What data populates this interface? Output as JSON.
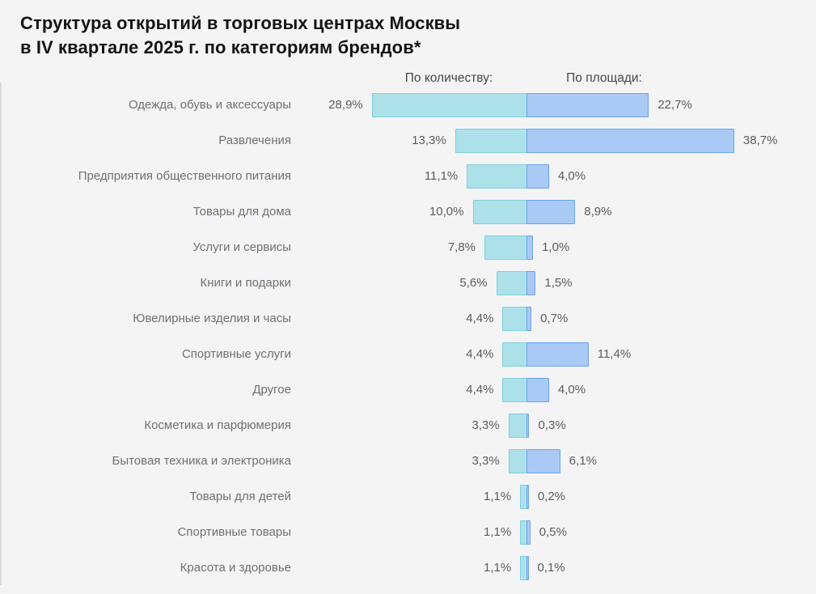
{
  "title": {
    "line1": "Структура открытий в торговых центрах Москвы",
    "line2": "в IV квартале 2025 г. по категориям брендов*"
  },
  "colors": {
    "background": "#f4f4f5",
    "title_text": "#141414",
    "category_text": "#6d7174",
    "value_text": "#595c5e",
    "header_text": "#45484a",
    "axis_line": "#dadadb",
    "count_fill": "#ace1ea",
    "count_border": "#7fcfdd",
    "area_fill": "#a9caf4",
    "area_border": "#6aa4ef"
  },
  "chart_data": {
    "type": "bar",
    "subtype": "diverging-horizontal",
    "title": "Структура открытий в торговых центрах Москвы в IV квартале 2025 г. по категориям брендов*",
    "left_header": "По количеству:",
    "right_header": "По площади:",
    "unit": "%",
    "legend_position": "top",
    "grid": false,
    "categories": [
      "Одежда, обувь и аксессуары",
      "Развлечения",
      "Предприятия общественного питания",
      "Товары для дома",
      "Услуги и сервисы",
      "Книги и подарки",
      "Ювелирные изделия и часы",
      "Спортивные услуги",
      "Другое",
      "Косметика и парфюмерия",
      "Бытовая техника и электроника",
      "Товары для детей",
      "Спортивные товары",
      "Красота и здоровье"
    ],
    "series": [
      {
        "name": "По количеству",
        "direction": "left",
        "values": [
          28.9,
          13.3,
          11.1,
          10.0,
          7.8,
          5.6,
          4.4,
          4.4,
          4.4,
          3.3,
          3.3,
          1.1,
          1.1,
          1.1
        ],
        "labels": [
          "28,9%",
          "13,3%",
          "11,1%",
          "10,0%",
          "7,8%",
          "5,6%",
          "4,4%",
          "4,4%",
          "4,4%",
          "3,3%",
          "3,3%",
          "1,1%",
          "1,1%",
          "1,1%"
        ],
        "fill": "#ace1ea",
        "border": "#7fcfdd"
      },
      {
        "name": "По площади",
        "direction": "right",
        "values": [
          22.7,
          38.7,
          4.0,
          8.9,
          1.0,
          1.5,
          0.7,
          11.4,
          4.0,
          0.3,
          6.1,
          0.2,
          0.5,
          0.1
        ],
        "labels": [
          "22,7%",
          "38,7%",
          "4,0%",
          "8,9%",
          "1,0%",
          "1,5%",
          "0,7%",
          "11,4%",
          "4,0%",
          "0,3%",
          "6,1%",
          "0,2%",
          "0,5%",
          "0,1%"
        ],
        "fill": "#a9caf4",
        "border": "#6aa4ef"
      }
    ]
  }
}
